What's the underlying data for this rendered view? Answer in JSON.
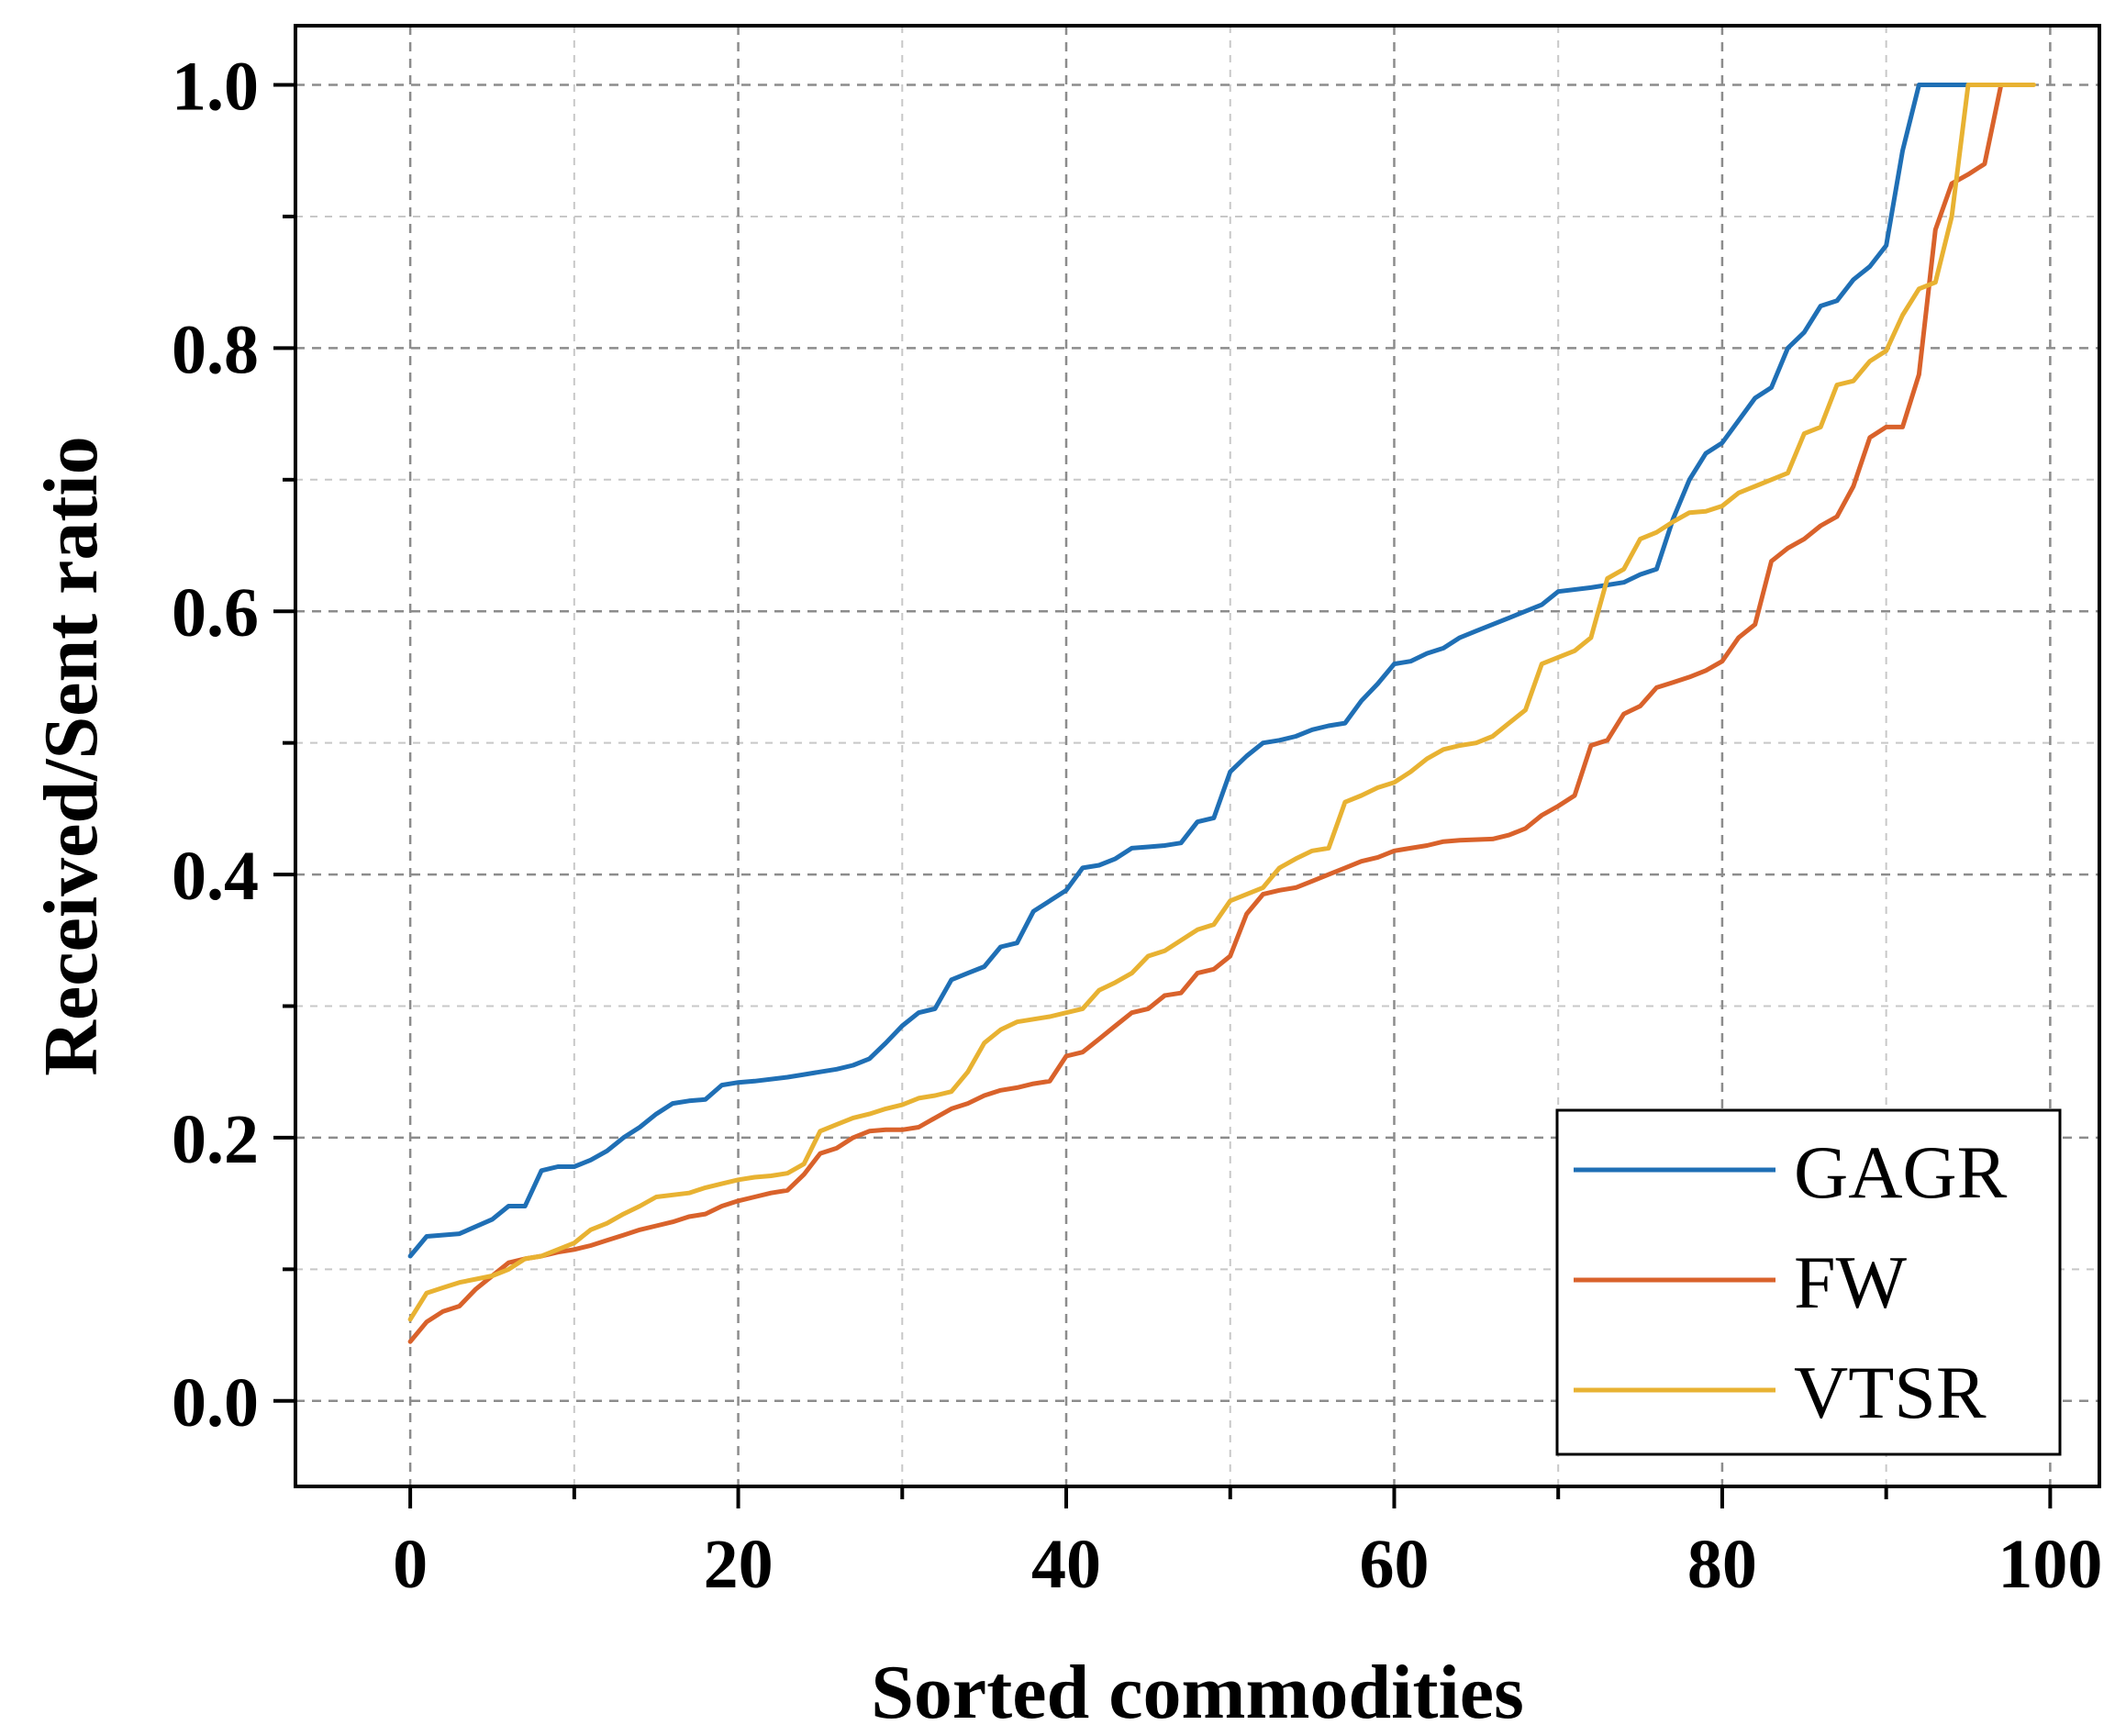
{
  "chart_data": {
    "type": "line",
    "title": "",
    "xlabel": "Sorted commodities",
    "ylabel": "Received/Sent ratio",
    "xlim": [
      -7,
      103
    ],
    "ylim": [
      -0.065,
      1.045
    ],
    "xticks": [
      0,
      20,
      40,
      60,
      80,
      100
    ],
    "xtick_labels": [
      "0",
      "20",
      "40",
      "60",
      "80",
      "100"
    ],
    "yticks": [
      0.0,
      0.2,
      0.4,
      0.6,
      0.8,
      1.0
    ],
    "ytick_labels": [
      "0.0",
      "0.2",
      "0.4",
      "0.6",
      "0.8",
      "1.0"
    ],
    "grid": true,
    "legend_position": "bottom-right",
    "series": [
      {
        "name": "GAGR",
        "color": "#1f6fb5",
        "points": [
          [
            0,
            0.11
          ],
          [
            1,
            0.125
          ],
          [
            3,
            0.127
          ],
          [
            5,
            0.138
          ],
          [
            6,
            0.148
          ],
          [
            7,
            0.148
          ],
          [
            8,
            0.175
          ],
          [
            9,
            0.178
          ],
          [
            10,
            0.178
          ],
          [
            11,
            0.183
          ],
          [
            12,
            0.19
          ],
          [
            13,
            0.2
          ],
          [
            14,
            0.208
          ],
          [
            15,
            0.218
          ],
          [
            16,
            0.226
          ],
          [
            17,
            0.228
          ],
          [
            18,
            0.229
          ],
          [
            19,
            0.24
          ],
          [
            20,
            0.242
          ],
          [
            21,
            0.243
          ],
          [
            23,
            0.246
          ],
          [
            24,
            0.248
          ],
          [
            25,
            0.25
          ],
          [
            26,
            0.252
          ],
          [
            27,
            0.255
          ],
          [
            28,
            0.26
          ],
          [
            29,
            0.272
          ],
          [
            30,
            0.285
          ],
          [
            31,
            0.295
          ],
          [
            32,
            0.298
          ],
          [
            33,
            0.32
          ],
          [
            34,
            0.325
          ],
          [
            35,
            0.33
          ],
          [
            36,
            0.345
          ],
          [
            37,
            0.348
          ],
          [
            38,
            0.372
          ],
          [
            39,
            0.38
          ],
          [
            40,
            0.388
          ],
          [
            41,
            0.405
          ],
          [
            42,
            0.407
          ],
          [
            43,
            0.412
          ],
          [
            44,
            0.42
          ],
          [
            45,
            0.421
          ],
          [
            46,
            0.422
          ],
          [
            47,
            0.424
          ],
          [
            48,
            0.44
          ],
          [
            49,
            0.443
          ],
          [
            50,
            0.478
          ],
          [
            51,
            0.49
          ],
          [
            52,
            0.5
          ],
          [
            53,
            0.502
          ],
          [
            54,
            0.505
          ],
          [
            55,
            0.51
          ],
          [
            56,
            0.513
          ],
          [
            57,
            0.515
          ],
          [
            58,
            0.532
          ],
          [
            59,
            0.545
          ],
          [
            60,
            0.56
          ],
          [
            61,
            0.562
          ],
          [
            62,
            0.568
          ],
          [
            63,
            0.572
          ],
          [
            64,
            0.58
          ],
          [
            65,
            0.585
          ],
          [
            66,
            0.59
          ],
          [
            67,
            0.595
          ],
          [
            68,
            0.6
          ],
          [
            69,
            0.605
          ],
          [
            70,
            0.615
          ],
          [
            72,
            0.618
          ],
          [
            74,
            0.622
          ],
          [
            75,
            0.628
          ],
          [
            76,
            0.632
          ],
          [
            77,
            0.67
          ],
          [
            78,
            0.7
          ],
          [
            79,
            0.72
          ],
          [
            80,
            0.728
          ],
          [
            81,
            0.745
          ],
          [
            82,
            0.762
          ],
          [
            83,
            0.77
          ],
          [
            84,
            0.8
          ],
          [
            85,
            0.812
          ],
          [
            86,
            0.832
          ],
          [
            87,
            0.836
          ],
          [
            88,
            0.852
          ],
          [
            89,
            0.862
          ],
          [
            90,
            0.878
          ],
          [
            91,
            0.95
          ],
          [
            92,
            1.0
          ],
          [
            95,
            1.0
          ]
        ]
      },
      {
        "name": "FW",
        "color": "#d9622b",
        "points": [
          [
            0,
            0.045
          ],
          [
            1,
            0.06
          ],
          [
            2,
            0.068
          ],
          [
            3,
            0.072
          ],
          [
            4,
            0.085
          ],
          [
            5,
            0.095
          ],
          [
            6,
            0.105
          ],
          [
            7,
            0.108
          ],
          [
            8,
            0.11
          ],
          [
            9,
            0.113
          ],
          [
            10,
            0.115
          ],
          [
            11,
            0.118
          ],
          [
            12,
            0.122
          ],
          [
            13,
            0.126
          ],
          [
            14,
            0.13
          ],
          [
            15,
            0.133
          ],
          [
            16,
            0.136
          ],
          [
            17,
            0.14
          ],
          [
            18,
            0.142
          ],
          [
            19,
            0.148
          ],
          [
            20,
            0.152
          ],
          [
            21,
            0.155
          ],
          [
            22,
            0.158
          ],
          [
            23,
            0.16
          ],
          [
            24,
            0.172
          ],
          [
            25,
            0.188
          ],
          [
            26,
            0.192
          ],
          [
            27,
            0.2
          ],
          [
            28,
            0.205
          ],
          [
            29,
            0.206
          ],
          [
            30,
            0.206
          ],
          [
            31,
            0.208
          ],
          [
            32,
            0.215
          ],
          [
            33,
            0.222
          ],
          [
            34,
            0.226
          ],
          [
            35,
            0.232
          ],
          [
            36,
            0.236
          ],
          [
            37,
            0.238
          ],
          [
            38,
            0.241
          ],
          [
            39,
            0.243
          ],
          [
            40,
            0.262
          ],
          [
            41,
            0.265
          ],
          [
            42,
            0.275
          ],
          [
            43,
            0.285
          ],
          [
            44,
            0.295
          ],
          [
            45,
            0.298
          ],
          [
            46,
            0.308
          ],
          [
            47,
            0.31
          ],
          [
            48,
            0.325
          ],
          [
            49,
            0.328
          ],
          [
            50,
            0.338
          ],
          [
            51,
            0.37
          ],
          [
            52,
            0.385
          ],
          [
            53,
            0.388
          ],
          [
            54,
            0.39
          ],
          [
            55,
            0.395
          ],
          [
            56,
            0.4
          ],
          [
            57,
            0.405
          ],
          [
            58,
            0.41
          ],
          [
            59,
            0.413
          ],
          [
            60,
            0.418
          ],
          [
            61,
            0.42
          ],
          [
            62,
            0.422
          ],
          [
            63,
            0.425
          ],
          [
            64,
            0.426
          ],
          [
            66,
            0.427
          ],
          [
            67,
            0.43
          ],
          [
            68,
            0.435
          ],
          [
            69,
            0.445
          ],
          [
            70,
            0.452
          ],
          [
            71,
            0.46
          ],
          [
            72,
            0.498
          ],
          [
            73,
            0.502
          ],
          [
            74,
            0.522
          ],
          [
            75,
            0.528
          ],
          [
            76,
            0.542
          ],
          [
            77,
            0.546
          ],
          [
            78,
            0.55
          ],
          [
            79,
            0.555
          ],
          [
            80,
            0.562
          ],
          [
            81,
            0.58
          ],
          [
            82,
            0.59
          ],
          [
            83,
            0.638
          ],
          [
            84,
            0.648
          ],
          [
            85,
            0.655
          ],
          [
            86,
            0.665
          ],
          [
            87,
            0.672
          ],
          [
            88,
            0.695
          ],
          [
            89,
            0.732
          ],
          [
            90,
            0.74
          ],
          [
            91,
            0.74
          ],
          [
            92,
            0.78
          ],
          [
            93,
            0.89
          ],
          [
            94,
            0.925
          ],
          [
            95,
            0.932
          ],
          [
            96,
            0.94
          ],
          [
            97,
            1.0
          ],
          [
            98,
            1.0
          ]
        ]
      },
      {
        "name": "VTSR",
        "color": "#e8b232",
        "points": [
          [
            0,
            0.062
          ],
          [
            1,
            0.082
          ],
          [
            2,
            0.086
          ],
          [
            3,
            0.09
          ],
          [
            5,
            0.095
          ],
          [
            6,
            0.1
          ],
          [
            7,
            0.108
          ],
          [
            8,
            0.11
          ],
          [
            9,
            0.115
          ],
          [
            10,
            0.12
          ],
          [
            11,
            0.13
          ],
          [
            12,
            0.135
          ],
          [
            13,
            0.142
          ],
          [
            14,
            0.148
          ],
          [
            15,
            0.155
          ],
          [
            17,
            0.158
          ],
          [
            18,
            0.162
          ],
          [
            19,
            0.165
          ],
          [
            20,
            0.168
          ],
          [
            21,
            0.17
          ],
          [
            22,
            0.171
          ],
          [
            23,
            0.173
          ],
          [
            24,
            0.18
          ],
          [
            25,
            0.205
          ],
          [
            26,
            0.21
          ],
          [
            27,
            0.215
          ],
          [
            28,
            0.218
          ],
          [
            29,
            0.222
          ],
          [
            30,
            0.225
          ],
          [
            31,
            0.23
          ],
          [
            32,
            0.232
          ],
          [
            33,
            0.235
          ],
          [
            34,
            0.25
          ],
          [
            35,
            0.272
          ],
          [
            36,
            0.282
          ],
          [
            37,
            0.288
          ],
          [
            38,
            0.29
          ],
          [
            39,
            0.292
          ],
          [
            40,
            0.295
          ],
          [
            41,
            0.298
          ],
          [
            42,
            0.312
          ],
          [
            43,
            0.318
          ],
          [
            44,
            0.325
          ],
          [
            45,
            0.338
          ],
          [
            46,
            0.342
          ],
          [
            47,
            0.35
          ],
          [
            48,
            0.358
          ],
          [
            49,
            0.362
          ],
          [
            50,
            0.38
          ],
          [
            52,
            0.39
          ],
          [
            53,
            0.405
          ],
          [
            54,
            0.412
          ],
          [
            55,
            0.418
          ],
          [
            56,
            0.42
          ],
          [
            57,
            0.455
          ],
          [
            58,
            0.46
          ],
          [
            59,
            0.466
          ],
          [
            60,
            0.47
          ],
          [
            61,
            0.478
          ],
          [
            62,
            0.488
          ],
          [
            63,
            0.495
          ],
          [
            64,
            0.498
          ],
          [
            65,
            0.5
          ],
          [
            66,
            0.505
          ],
          [
            67,
            0.515
          ],
          [
            68,
            0.525
          ],
          [
            69,
            0.56
          ],
          [
            70,
            0.565
          ],
          [
            71,
            0.57
          ],
          [
            72,
            0.58
          ],
          [
            73,
            0.625
          ],
          [
            74,
            0.632
          ],
          [
            75,
            0.655
          ],
          [
            76,
            0.66
          ],
          [
            77,
            0.668
          ],
          [
            78,
            0.675
          ],
          [
            79,
            0.676
          ],
          [
            80,
            0.68
          ],
          [
            81,
            0.69
          ],
          [
            82,
            0.695
          ],
          [
            83,
            0.7
          ],
          [
            84,
            0.705
          ],
          [
            85,
            0.735
          ],
          [
            86,
            0.74
          ],
          [
            87,
            0.772
          ],
          [
            88,
            0.775
          ],
          [
            89,
            0.79
          ],
          [
            90,
            0.798
          ],
          [
            91,
            0.825
          ],
          [
            92,
            0.845
          ],
          [
            93,
            0.85
          ],
          [
            94,
            0.9
          ],
          [
            95,
            1.0
          ],
          [
            99,
            1.0
          ]
        ]
      }
    ]
  }
}
